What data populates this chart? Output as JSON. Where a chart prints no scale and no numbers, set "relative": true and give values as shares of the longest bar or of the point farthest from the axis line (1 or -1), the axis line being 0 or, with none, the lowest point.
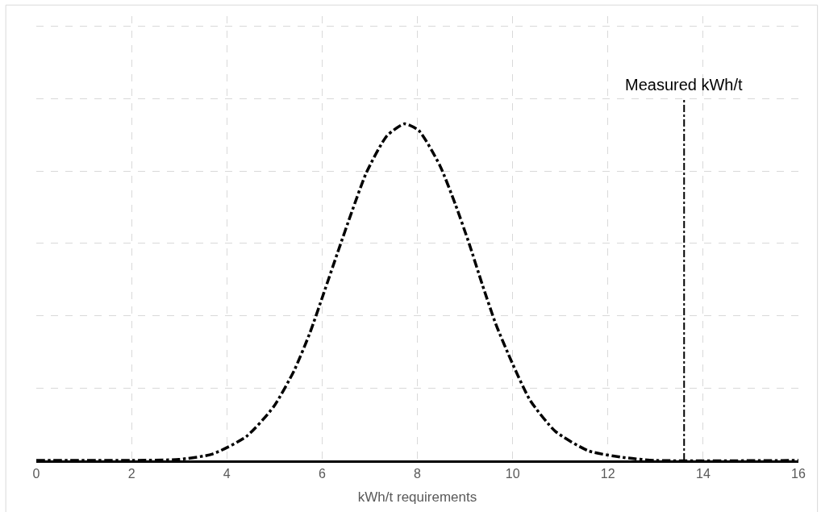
{
  "chart_data": {
    "type": "line",
    "relative": true,
    "xlabel": "kWh/t requirements",
    "x": [
      0,
      2,
      3,
      3.7,
      4.41,
      4.98,
      5.41,
      5.75,
      6.04,
      6.33,
      6.62,
      6.93,
      7.36,
      7.73,
      8.03,
      8.47,
      8.8,
      9.09,
      9.36,
      9.65,
      9.99,
      10.37,
      10.9,
      11.6,
      12.37,
      13,
      16
    ],
    "series": [
      {
        "color": "#000000",
        "values": [
          0,
          0,
          0.003,
          0.019,
          0.071,
          0.159,
          0.266,
          0.381,
          0.499,
          0.619,
          0.737,
          0.855,
          0.964,
          1.0,
          0.98,
          0.877,
          0.76,
          0.643,
          0.524,
          0.404,
          0.29,
          0.178,
          0.086,
          0.028,
          0.008,
          0,
          0
        ]
      }
    ],
    "xlim": [
      0,
      16
    ],
    "xticks": [
      0,
      2,
      4,
      6,
      8,
      10,
      12,
      14,
      16
    ],
    "ref_lines": [
      {
        "axis": "x",
        "value": 13.6,
        "label": "Measured kWh/t",
        "color": "#000000",
        "line_style": "dashdot"
      }
    ],
    "grid": true,
    "line_style": "dashdot",
    "marker": "none"
  }
}
